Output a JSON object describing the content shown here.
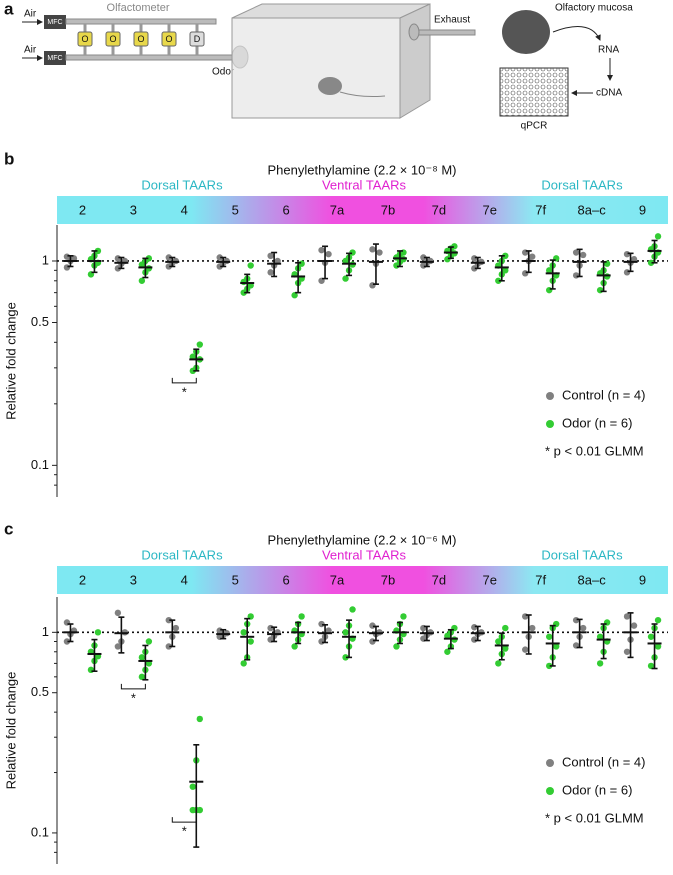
{
  "panel_a": {
    "label": "a",
    "air_top": "Air",
    "air_bottom": "Air",
    "mfc_top": "MFC",
    "mfc_bottom": "MFC",
    "olfactometer": "Olfactometer",
    "valves": [
      "O",
      "O",
      "O",
      "O",
      "D"
    ],
    "odor": "Odor",
    "exhaust": "Exhaust",
    "mucosa": "Olfactory mucosa",
    "rna": "RNA",
    "cdna": "cDNA",
    "qpcr": "qPCR"
  },
  "chart_data": [
    {
      "type": "strip",
      "panel_label": "b",
      "title": "Phenylethylamine (2.2 × 10⁻⁸ M)",
      "y_label": "Relative fold change",
      "log_y": true,
      "groups": [
        {
          "label": "Dorsal TAARs",
          "color": "#2bb7c4"
        },
        {
          "label": "Ventral TAARs",
          "color": "#e020d0"
        },
        {
          "label": "Dorsal TAARs",
          "color": "#2bb7c4"
        }
      ],
      "categories": [
        "2",
        "3",
        "4",
        "5",
        "6",
        "7a",
        "7b",
        "7d",
        "7e",
        "7f",
        "8a–c",
        "9"
      ],
      "ylim": [
        0.07,
        1.5
      ],
      "yticks": [
        0.1,
        0.5,
        1
      ],
      "minor_yticks": [
        0.08,
        0.09,
        0.2,
        0.3,
        0.4,
        0.6,
        0.7,
        0.8,
        0.9
      ],
      "reference_line": 1,
      "series": [
        {
          "name": "Control (n = 4)",
          "color": "#808080",
          "values": [
            1.0,
            0.98,
            0.99,
            0.99,
            0.97,
            1.0,
            0.99,
            0.99,
            0.98,
            1.0,
            0.99,
            0.99
          ],
          "errors": [
            0.06,
            0.06,
            0.05,
            0.05,
            0.13,
            0.18,
            0.22,
            0.05,
            0.06,
            0.12,
            0.15,
            0.1
          ],
          "points": [
            [
              0.93,
              1.0,
              1.03,
              1.05
            ],
            [
              0.92,
              0.97,
              1.0,
              1.03
            ],
            [
              0.94,
              0.98,
              1.0,
              1.04
            ],
            [
              0.94,
              0.98,
              1.0,
              1.04
            ],
            [
              0.88,
              0.95,
              1.0,
              1.06
            ],
            [
              0.8,
              0.98,
              1.08,
              1.13
            ],
            [
              0.76,
              0.97,
              1.1,
              1.14
            ],
            [
              0.95,
              0.98,
              1.0,
              1.04
            ],
            [
              0.92,
              0.97,
              0.99,
              1.03
            ],
            [
              0.87,
              1.0,
              1.05,
              1.1
            ],
            [
              0.85,
              0.95,
              1.07,
              1.1
            ],
            [
              0.88,
              0.98,
              1.02,
              1.08
            ]
          ]
        },
        {
          "name": "Odor (n = 6)",
          "color": "#33cc33",
          "values": [
            1.0,
            0.93,
            0.33,
            0.78,
            0.84,
            0.97,
            1.03,
            1.1,
            0.93,
            0.87,
            0.85,
            1.12
          ],
          "errors": [
            0.12,
            0.1,
            0.04,
            0.08,
            0.14,
            0.12,
            0.09,
            0.07,
            0.13,
            0.14,
            0.14,
            0.14
          ],
          "points": [
            [
              0.86,
              0.95,
              0.98,
              1.02,
              1.06,
              1.12
            ],
            [
              0.8,
              0.88,
              0.92,
              0.96,
              1.0,
              1.03
            ],
            [
              0.29,
              0.3,
              0.33,
              0.34,
              0.36,
              0.39
            ],
            [
              0.7,
              0.73,
              0.76,
              0.79,
              0.82,
              0.95
            ],
            [
              0.68,
              0.78,
              0.82,
              0.86,
              0.92,
              0.97
            ],
            [
              0.82,
              0.9,
              0.96,
              1.0,
              1.04,
              1.1
            ],
            [
              0.95,
              0.99,
              1.02,
              1.04,
              1.08,
              1.1
            ],
            [
              1.02,
              1.06,
              1.09,
              1.12,
              1.15,
              1.18
            ],
            [
              0.8,
              0.86,
              0.9,
              0.95,
              1.0,
              1.06
            ],
            [
              0.72,
              0.8,
              0.85,
              0.9,
              0.95,
              1.03
            ],
            [
              0.72,
              0.78,
              0.84,
              0.87,
              0.9,
              0.97
            ],
            [
              0.98,
              1.05,
              1.1,
              1.14,
              1.18,
              1.32
            ]
          ]
        }
      ],
      "significance": [
        {
          "category": "4",
          "label": "*"
        }
      ],
      "note": "* p < 0.01 GLMM"
    },
    {
      "type": "strip",
      "panel_label": "c",
      "title": "Phenylethylamine (2.2 × 10⁻⁶ M)",
      "y_label": "Relative fold change",
      "log_y": true,
      "groups": [
        {
          "label": "Dorsal TAARs",
          "color": "#2bb7c4"
        },
        {
          "label": "Ventral TAARs",
          "color": "#e020d0"
        },
        {
          "label": "Dorsal TAARs",
          "color": "#2bb7c4"
        }
      ],
      "categories": [
        "2",
        "3",
        "4",
        "5",
        "6",
        "7a",
        "7b",
        "7d",
        "7e",
        "7f",
        "8a–c",
        "9"
      ],
      "ylim": [
        0.07,
        1.5
      ],
      "yticks": [
        0.1,
        0.5,
        1
      ],
      "minor_yticks": [
        0.08,
        0.09,
        0.2,
        0.3,
        0.4,
        0.6,
        0.7,
        0.8,
        0.9
      ],
      "reference_line": 1,
      "series": [
        {
          "name": "Control (n = 4)",
          "color": "#808080",
          "values": [
            1.0,
            0.99,
            1.0,
            0.98,
            0.98,
            0.99,
            0.99,
            0.99,
            0.99,
            1.0,
            1.0,
            1.0
          ],
          "errors": [
            0.1,
            0.2,
            0.15,
            0.05,
            0.08,
            0.1,
            0.08,
            0.08,
            0.08,
            0.22,
            0.16,
            0.25
          ],
          "points": [
            [
              0.9,
              0.98,
              1.02,
              1.12
            ],
            [
              0.85,
              0.9,
              1.0,
              1.25
            ],
            [
              0.85,
              0.95,
              1.05,
              1.15
            ],
            [
              0.95,
              0.97,
              0.99,
              1.02
            ],
            [
              0.92,
              0.96,
              1.0,
              1.05
            ],
            [
              0.9,
              0.95,
              1.02,
              1.1
            ],
            [
              0.9,
              0.98,
              1.0,
              1.08
            ],
            [
              0.93,
              0.97,
              1.0,
              1.05
            ],
            [
              0.92,
              0.98,
              1.0,
              1.06
            ],
            [
              0.82,
              0.95,
              1.05,
              1.2
            ],
            [
              0.86,
              0.95,
              1.05,
              1.15
            ],
            [
              0.8,
              0.92,
              1.08,
              1.2
            ]
          ]
        },
        {
          "name": "Odor (n = 6)",
          "color": "#33cc33",
          "values": [
            0.78,
            0.72,
            0.18,
            0.95,
            1.0,
            0.95,
            1.0,
            0.93,
            0.86,
            0.88,
            0.92,
            0.88
          ],
          "errors": [
            0.14,
            0.14,
            0.095,
            0.22,
            0.12,
            0.2,
            0.12,
            0.1,
            0.13,
            0.2,
            0.18,
            0.22
          ],
          "points": [
            [
              0.65,
              0.72,
              0.76,
              0.8,
              0.86,
              1.0
            ],
            [
              0.6,
              0.65,
              0.7,
              0.75,
              0.8,
              0.9
            ],
            [
              0.13,
              0.13,
              0.13,
              0.17,
              0.23,
              0.37
            ],
            [
              0.7,
              0.75,
              0.9,
              1.0,
              1.1,
              1.2
            ],
            [
              0.85,
              0.92,
              0.98,
              1.02,
              1.1,
              1.2
            ],
            [
              0.75,
              0.85,
              0.93,
              1.0,
              1.08,
              1.3
            ],
            [
              0.85,
              0.92,
              0.98,
              1.02,
              1.1,
              1.2
            ],
            [
              0.8,
              0.85,
              0.92,
              0.96,
              1.0,
              1.05
            ],
            [
              0.7,
              0.78,
              0.83,
              0.9,
              0.95,
              1.05
            ],
            [
              0.68,
              0.75,
              0.85,
              0.95,
              1.05,
              1.1
            ],
            [
              0.7,
              0.8,
              0.9,
              0.95,
              1.05,
              1.12
            ],
            [
              0.68,
              0.75,
              0.85,
              0.95,
              1.05,
              1.15
            ]
          ]
        }
      ],
      "significance": [
        {
          "category": "3",
          "label": "*"
        },
        {
          "category": "4",
          "label": "*"
        }
      ],
      "note": "* p < 0.01 GLMM"
    }
  ]
}
